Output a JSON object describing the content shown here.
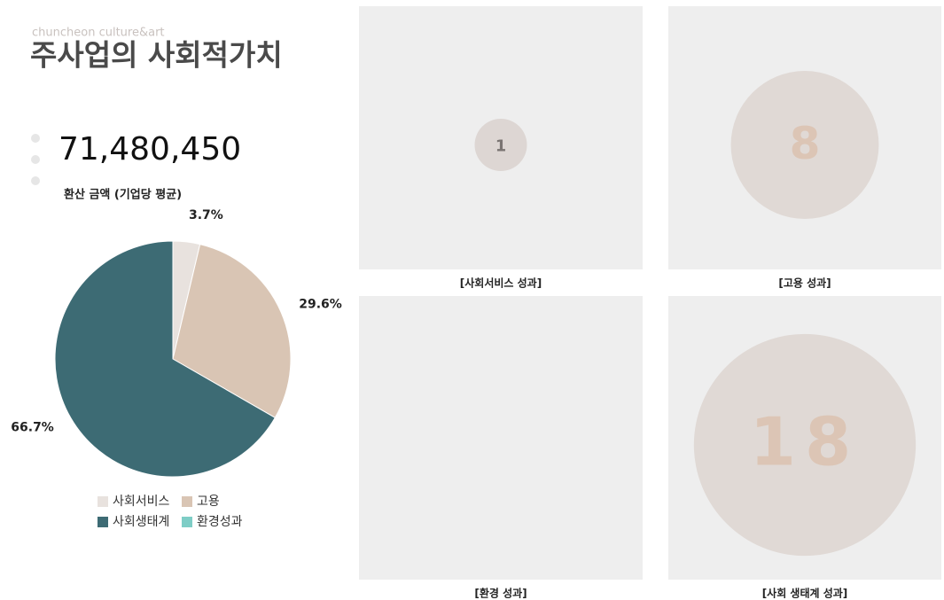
{
  "header": {
    "subtitle": "chuncheon culture&art",
    "title": "주사업의 사회적가치"
  },
  "kpi": {
    "value": "71,480,450",
    "label": "환산 금액 (기업당 평균)"
  },
  "chart_data": [
    {
      "type": "pie",
      "categories": [
        "사회서비스",
        "고용",
        "사회생태계",
        "환경성과"
      ],
      "values": [
        3.7,
        29.6,
        66.7,
        0
      ],
      "value_labels": [
        "3.7%",
        "29.6%",
        "66.7%",
        null
      ],
      "colors": [
        "#e8e2de",
        "#d9c5b4",
        "#3d6b74",
        "#7ecdc6"
      ],
      "legend": "bottom"
    },
    {
      "type": "bubble",
      "title": "[사회서비스 성과]",
      "value": 1,
      "color": "#ddd6d3",
      "label_color": "#7a7472"
    },
    {
      "type": "bubble",
      "title": "[고용 성과]",
      "value": 8,
      "color": "#e0d9d5",
      "label_color": "#dcc5b5"
    },
    {
      "type": "bubble",
      "title": "[환경 성과]",
      "value": null,
      "color": "#e0d9d5",
      "label_color": "#dcc5b5"
    },
    {
      "type": "bubble",
      "title": "[사회 생태계 성과]",
      "value": 18,
      "color": "#e0d9d5",
      "label_color": "#dcc5b5"
    }
  ]
}
